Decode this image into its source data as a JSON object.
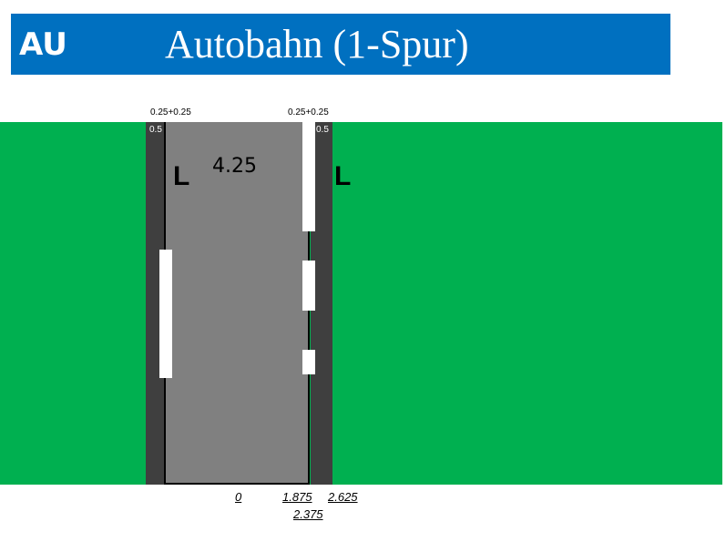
{
  "header": {
    "code": "AU",
    "title": "Autobahn (1-Spur)",
    "color": "#0070c0"
  },
  "colors": {
    "grass": "#00b050",
    "shoulder": "#3f3f3f",
    "lane": "#808080",
    "marking": "#ffffff"
  },
  "labels": {
    "top_left": "0.25+0.25",
    "top_right": "0.25+0.25",
    "shoulder_left": "0.5",
    "shoulder_right": "0.5",
    "lane_type_left": "L",
    "lane_type_right": "L",
    "lane_width": "4.25"
  },
  "offsets": [
    "0",
    "1.875",
    "2.625",
    "2.375"
  ]
}
